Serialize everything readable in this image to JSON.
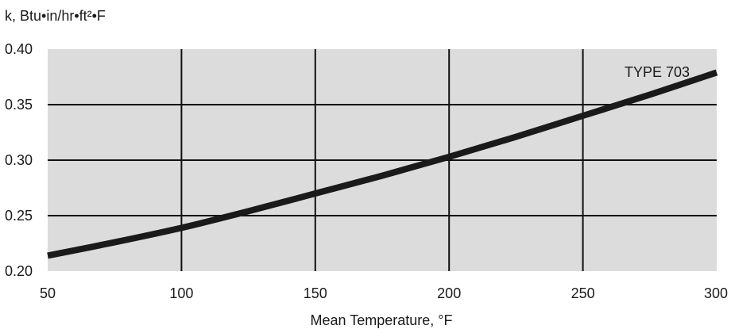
{
  "chart_data": {
    "type": "line",
    "ylabel": "k, Btu•in/hr•ft²•F",
    "xlabel": "Mean Temperature, °F",
    "xlim": [
      50,
      300
    ],
    "ylim": [
      0.2,
      0.4
    ],
    "x_ticks": [
      "50",
      "100",
      "150",
      "200",
      "250",
      "300"
    ],
    "y_ticks": [
      "0.40",
      "0.35",
      "0.30",
      "0.25",
      "0.20"
    ],
    "grid": true,
    "series": [
      {
        "name": "TYPE 703",
        "x": [
          50,
          75,
          100,
          125,
          150,
          175,
          200,
          225,
          250,
          275,
          300
        ],
        "y": [
          0.214,
          0.226,
          0.239,
          0.254,
          0.27,
          0.286,
          0.303,
          0.321,
          0.34,
          0.359,
          0.379
        ]
      }
    ],
    "colors": {
      "plot_background": "#dcdcdc",
      "grid": "#111111",
      "line": "#1a1a1a"
    }
  }
}
